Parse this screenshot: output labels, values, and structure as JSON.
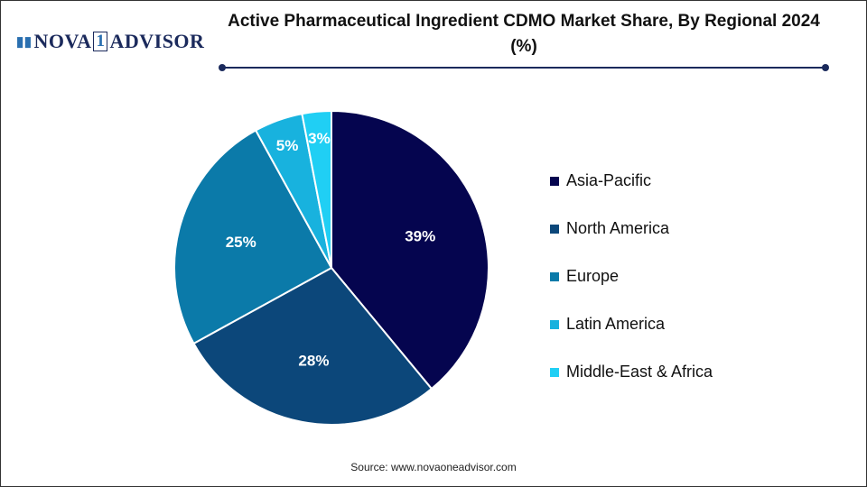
{
  "logo": {
    "text_left": "NOVA",
    "text_num": "1",
    "text_right": "ADVISOR"
  },
  "title": "Active Pharmaceutical Ingredient CDMO Market Share, By Regional 2024 (%)",
  "source": "Source: www.novaoneadvisor.com",
  "chart_data": {
    "type": "pie",
    "title": "Active Pharmaceutical Ingredient CDMO Market Share, By Regional 2024 (%)",
    "start": "top",
    "direction": "clockwise",
    "legend_position": "right",
    "slices": [
      {
        "label": "Asia-Pacific",
        "value": 39,
        "data_label": "39%",
        "color": "#05054f"
      },
      {
        "label": "North America",
        "value": 28,
        "data_label": "28%",
        "color": "#0c477a"
      },
      {
        "label": "Europe",
        "value": 25,
        "data_label": "25%",
        "color": "#0b7aa9"
      },
      {
        "label": "Latin America",
        "value": 5,
        "data_label": "5%",
        "color": "#18b2de"
      },
      {
        "label": "Middle-East & Africa",
        "value": 3,
        "data_label": "3%",
        "color": "#20cff4"
      }
    ]
  }
}
